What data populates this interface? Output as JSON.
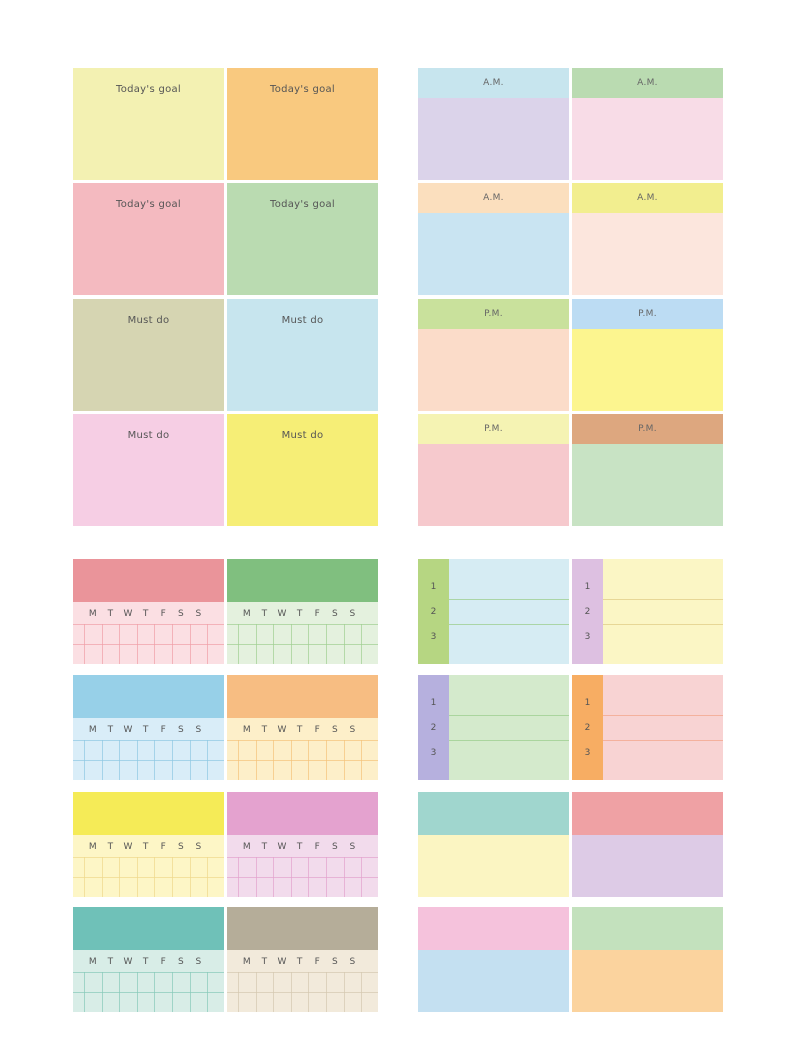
{
  "goal_notes": [
    {
      "label": "Today's goal",
      "color": "#f3f1b2"
    },
    {
      "label": "Today's goal",
      "color": "#f9c97f"
    },
    {
      "label": "Today's goal",
      "color": "#f4bac0"
    },
    {
      "label": "Today's goal",
      "color": "#badbb1"
    },
    {
      "label": "Must do",
      "color": "#d6d5b2"
    },
    {
      "label": "Must do",
      "color": "#c7e5ee"
    },
    {
      "label": "Must do",
      "color": "#f6cee4"
    },
    {
      "label": "Must do",
      "color": "#f6ee76"
    }
  ],
  "ampm_notes": [
    {
      "label": "A.M.",
      "band": "#c7e5ee",
      "body": "#dbd3ea"
    },
    {
      "label": "A.M.",
      "band": "#badbb1",
      "body": "#f8dce7"
    },
    {
      "label": "A.M.",
      "band": "#fbdfbe",
      "body": "#c9e4f2"
    },
    {
      "label": "A.M.",
      "band": "#f2ee8f",
      "body": "#fce6dd"
    },
    {
      "label": "P.M.",
      "band": "#c9e19c",
      "body": "#fbdcc9"
    },
    {
      "label": "P.M.",
      "band": "#bcdcf3",
      "body": "#fcf58f"
    },
    {
      "label": "P.M.",
      "band": "#f5f3b3",
      "body": "#f6c9cd"
    },
    {
      "label": "P.M.",
      "band": "#dda77f",
      "body": "#c8e3c4"
    }
  ],
  "week_days": [
    "M",
    "T",
    "W",
    "T",
    "F",
    "S",
    "S"
  ],
  "weekly_notes": [
    {
      "header": "#ea949a",
      "body": "#fbdfe3",
      "line": "#ef9ea6"
    },
    {
      "header": "#80bf7f",
      "body": "#e4f1de",
      "line": "#9fcf92"
    },
    {
      "header": "#97d0e8",
      "body": "#d9edf8",
      "line": "#8fc7e2"
    },
    {
      "header": "#f7bd82",
      "body": "#fdefc9",
      "line": "#f4c37b"
    },
    {
      "header": "#f5eb57",
      "body": "#fdf6c6",
      "line": "#eed98b"
    },
    {
      "header": "#e4a2cf",
      "body": "#f2dbec",
      "line": "#e3a3cd"
    },
    {
      "header": "#6fc1b8",
      "body": "#d8ede7",
      "line": "#87c9b9"
    },
    {
      "header": "#b5ad99",
      "body": "#f2eadb",
      "line": "#d4c8b0"
    }
  ],
  "list_numbers": [
    "1",
    "2",
    "3"
  ],
  "list_notes": [
    {
      "side": "#b6d682",
      "body": "#d6ecf3",
      "line": "#9fcf92"
    },
    {
      "side": "#ddc0e1",
      "body": "#fbf6c5",
      "line": "#e2cf8a"
    },
    {
      "side": "#b6b0de",
      "body": "#d4eacc",
      "line": "#9fcf92"
    },
    {
      "side": "#f7ad63",
      "body": "#f8d3d3",
      "line": "#f3a990"
    }
  ],
  "plain_notes": [
    {
      "top": "#a0d6ce",
      "bottom": "#fbf5c2"
    },
    {
      "top": "#efa1a4",
      "bottom": "#ddcbe6"
    },
    {
      "top": "#f5c2dc",
      "bottom": "#c4e0f1"
    },
    {
      "top": "#c3e1bd",
      "bottom": "#fbd39e"
    }
  ]
}
